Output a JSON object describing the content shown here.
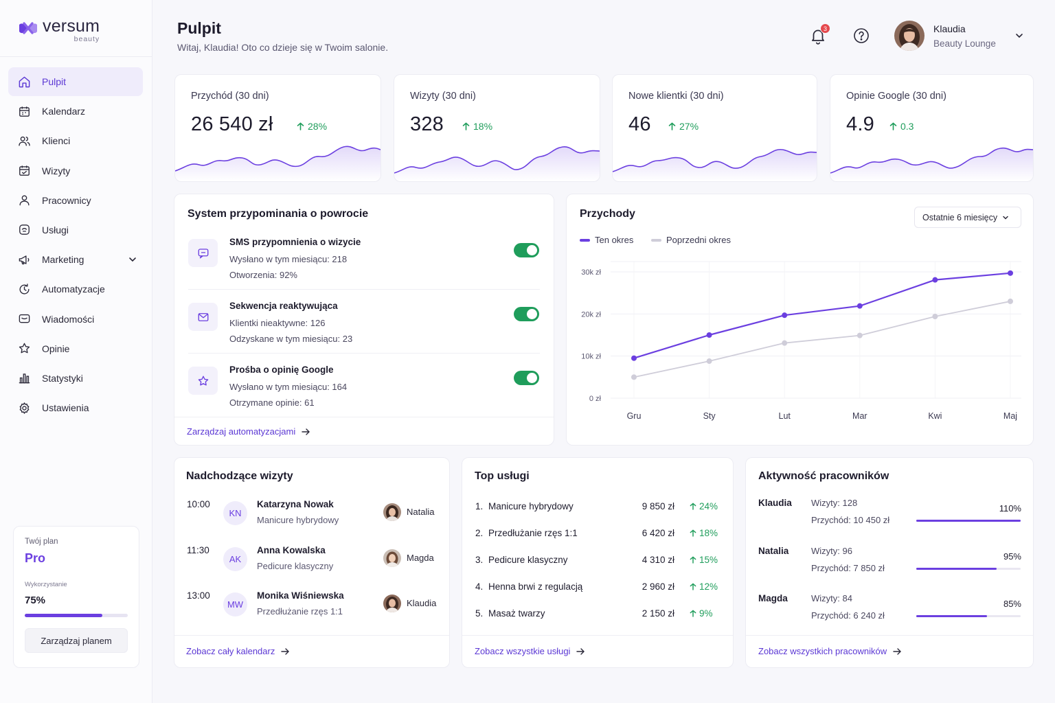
{
  "brand": {
    "name": "versum",
    "sub": "beauty"
  },
  "nav": [
    {
      "label": "Pulpit",
      "icon": "home-icon",
      "active": true
    },
    {
      "label": "Kalendarz",
      "icon": "calendar-icon"
    },
    {
      "label": "Klienci",
      "icon": "users-icon"
    },
    {
      "label": "Wizyty",
      "icon": "calendar-check-icon"
    },
    {
      "label": "Pracownicy",
      "icon": "user-icon"
    },
    {
      "label": "Usługi",
      "icon": "services-icon"
    },
    {
      "label": "Marketing",
      "icon": "megaphone-icon",
      "expandable": true
    },
    {
      "label": "Automatyzacje",
      "icon": "automation-icon"
    },
    {
      "label": "Wiadomości",
      "icon": "message-icon"
    },
    {
      "label": "Opinie",
      "icon": "star-icon"
    },
    {
      "label": "Statystyki",
      "icon": "bar-chart-icon"
    },
    {
      "label": "Ustawienia",
      "icon": "gear-icon"
    }
  ],
  "plan": {
    "label": "Twój plan",
    "name": "Pro",
    "usage_label": "Wykorzystanie",
    "usage": "75%",
    "usage_fraction": 0.75,
    "button": "Zarządzaj planem"
  },
  "header": {
    "title": "Pulpit",
    "subtitle": "Witaj, Klaudia! Oto co dzieje się w Twoim salonie.",
    "notifications": "3",
    "user_name": "Klaudia",
    "user_company": "Beauty Lounge"
  },
  "kpis": [
    {
      "title": "Przychód (30 dni)",
      "value": "26 540 zł",
      "delta": "28%"
    },
    {
      "title": "Wizyty (30 dni)",
      "value": "328",
      "delta": "18%"
    },
    {
      "title": "Nowe klientki (30 dni)",
      "value": "46",
      "delta": "27%"
    },
    {
      "title": "Opinie Google (30 dni)",
      "value": "4.9",
      "delta": "0.3"
    }
  ],
  "automation": {
    "title": "System przypominania o powrocie",
    "items": [
      {
        "title": "SMS przypomnienia o wizycie",
        "line1": "Wysłano w tym miesiącu: 218",
        "line2": "Otworzenia: 92%",
        "enabled": true,
        "icon": "chat-icon"
      },
      {
        "title": "Sekwencja reaktywująca",
        "line1": "Klientki nieaktywne: 126",
        "line2": "Odzyskane w tym miesiącu: 23",
        "enabled": true,
        "icon": "mail-icon"
      },
      {
        "title": "Prośba o opinię Google",
        "line1": "Wysłano w tym miesiącu: 164",
        "line2": "Otrzymane opinie: 61",
        "enabled": true,
        "icon": "star-icon"
      }
    ],
    "link": "Zarządzaj automatyzacjami"
  },
  "revenue": {
    "title": "Przychody",
    "range": "Ostatnie 6 miesięcy",
    "legend_current": "Ten okres",
    "legend_previous": "Poprzedni okres",
    "colors": {
      "current": "#6b3fe0",
      "previous": "#cfcdd9"
    }
  },
  "chart_data": {
    "type": "line",
    "categories": [
      "Gru",
      "Sty",
      "Lut",
      "Mar",
      "Kwi",
      "Maj"
    ],
    "series": [
      {
        "name": "Ten okres",
        "values": [
          9500,
          15000,
          19700,
          21900,
          28100,
          29700
        ]
      },
      {
        "name": "Poprzedni okres",
        "values": [
          5000,
          8800,
          13100,
          14900,
          19400,
          23000
        ]
      }
    ],
    "yticks": [
      "0 zł",
      "10k zł",
      "20k zł",
      "30k zł"
    ],
    "ylim": [
      0,
      30000
    ],
    "grid": true,
    "legend": "top-left"
  },
  "upcoming": {
    "title": "Nadchodzące wizyty",
    "items": [
      {
        "time": "10:00",
        "initials": "KN",
        "name": "Katarzyna Nowak",
        "service": "Manicure hybrydowy",
        "staff": "Natalia"
      },
      {
        "time": "11:30",
        "initials": "AK",
        "name": "Anna Kowalska",
        "service": "Pedicure klasyczny",
        "staff": "Magda"
      },
      {
        "time": "13:00",
        "initials": "MW",
        "name": "Monika Wiśniewska",
        "service": "Przedłużanie rzęs 1:1",
        "staff": "Klaudia"
      }
    ],
    "link": "Zobacz cały kalendarz"
  },
  "top_services": {
    "title": "Top usługi",
    "items": [
      {
        "no": "1.",
        "name": "Manicure hybrydowy",
        "revenue": "9 850 zł",
        "delta": "24%"
      },
      {
        "no": "2.",
        "name": "Przedłużanie rzęs 1:1",
        "revenue": "6 420 zł",
        "delta": "18%"
      },
      {
        "no": "3.",
        "name": "Pedicure klasyczny",
        "revenue": "4 310 zł",
        "delta": "15%"
      },
      {
        "no": "4.",
        "name": "Henna brwi z regulacją",
        "revenue": "2 960 zł",
        "delta": "12%"
      },
      {
        "no": "5.",
        "name": "Masaż twarzy",
        "revenue": "2 150 zł",
        "delta": "9%"
      }
    ],
    "link": "Zobacz wszystkie usługi"
  },
  "staff": {
    "title": "Aktywność pracowników",
    "items": [
      {
        "name": "Klaudia",
        "visits": "Wizyty: 128",
        "revenue": "Przychód: 10 450 zł",
        "pct": "110%",
        "fill": 1.0
      },
      {
        "name": "Natalia",
        "visits": "Wizyty: 96",
        "revenue": "Przychód: 7 850 zł",
        "pct": "95%",
        "fill": 0.77
      },
      {
        "name": "Magda",
        "visits": "Wizyty: 84",
        "revenue": "Przychód: 6 240 zł",
        "pct": "85%",
        "fill": 0.68
      }
    ],
    "link": "Zobacz wszystkich pracowników"
  }
}
